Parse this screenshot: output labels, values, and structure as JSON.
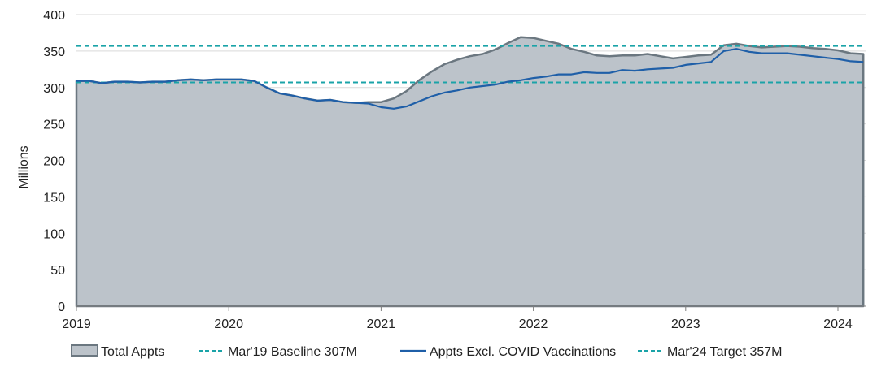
{
  "chart_data": {
    "type": "area",
    "title": "",
    "xlabel": "",
    "ylabel": "Millions",
    "ylim": [
      0,
      400
    ],
    "y_ticks": [
      "0",
      "50",
      "100",
      "150",
      "200",
      "250",
      "300",
      "350",
      "400"
    ],
    "x_ticks": [
      "2019",
      "2020",
      "2021",
      "2022",
      "2023",
      "2024"
    ],
    "xlim": [
      "2019-01",
      "2024-03"
    ],
    "grid": "horizontal",
    "legend_position": "bottom",
    "x": [
      "2019-01",
      "2019-02",
      "2019-03",
      "2019-04",
      "2019-05",
      "2019-06",
      "2019-07",
      "2019-08",
      "2019-09",
      "2019-10",
      "2019-11",
      "2019-12",
      "2020-01",
      "2020-02",
      "2020-03",
      "2020-04",
      "2020-05",
      "2020-06",
      "2020-07",
      "2020-08",
      "2020-09",
      "2020-10",
      "2020-11",
      "2020-12",
      "2021-01",
      "2021-02",
      "2021-03",
      "2021-04",
      "2021-05",
      "2021-06",
      "2021-07",
      "2021-08",
      "2021-09",
      "2021-10",
      "2021-11",
      "2021-12",
      "2022-01",
      "2022-02",
      "2022-03",
      "2022-04",
      "2022-05",
      "2022-06",
      "2022-07",
      "2022-08",
      "2022-09",
      "2022-10",
      "2022-11",
      "2022-12",
      "2023-01",
      "2023-02",
      "2023-03",
      "2023-04",
      "2023-05",
      "2023-06",
      "2023-07",
      "2023-08",
      "2023-09",
      "2023-10",
      "2023-11",
      "2023-12",
      "2024-01",
      "2024-02",
      "2024-03"
    ],
    "series": [
      {
        "name": "Total Appts",
        "kind": "area",
        "color": "#6b7780",
        "fill": "#bcc3ca",
        "values": [
          309,
          309,
          306,
          308,
          308,
          307,
          308,
          308,
          310,
          311,
          310,
          311,
          311,
          311,
          309,
          300,
          292,
          289,
          285,
          282,
          283,
          280,
          279,
          280,
          280,
          285,
          295,
          310,
          322,
          332,
          338,
          343,
          346,
          352,
          361,
          369,
          368,
          364,
          360,
          353,
          349,
          344,
          343,
          344,
          344,
          346,
          343,
          340,
          342,
          344,
          345,
          358,
          360,
          357,
          355,
          356,
          357,
          356,
          354,
          353,
          351,
          347,
          346
        ]
      },
      {
        "name": "Mar'19 Baseline 307M",
        "kind": "hline",
        "color": "#1aa3a8",
        "value": 307
      },
      {
        "name": "Appts Excl. COVID Vaccinations",
        "kind": "line",
        "color": "#1f5fa8",
        "values": [
          309,
          309,
          306,
          308,
          308,
          307,
          308,
          308,
          310,
          311,
          310,
          311,
          311,
          311,
          309,
          300,
          292,
          289,
          285,
          282,
          283,
          280,
          279,
          278,
          273,
          271,
          274,
          281,
          288,
          293,
          296,
          300,
          302,
          304,
          308,
          310,
          313,
          315,
          318,
          318,
          321,
          320,
          320,
          324,
          323,
          325,
          326,
          327,
          331,
          333,
          335,
          350,
          353,
          349,
          347,
          347,
          347,
          345,
          343,
          341,
          339,
          336,
          335
        ]
      },
      {
        "name": "Mar'24 Target 357M",
        "kind": "hline",
        "color": "#1aa3a8",
        "value": 357
      }
    ]
  }
}
